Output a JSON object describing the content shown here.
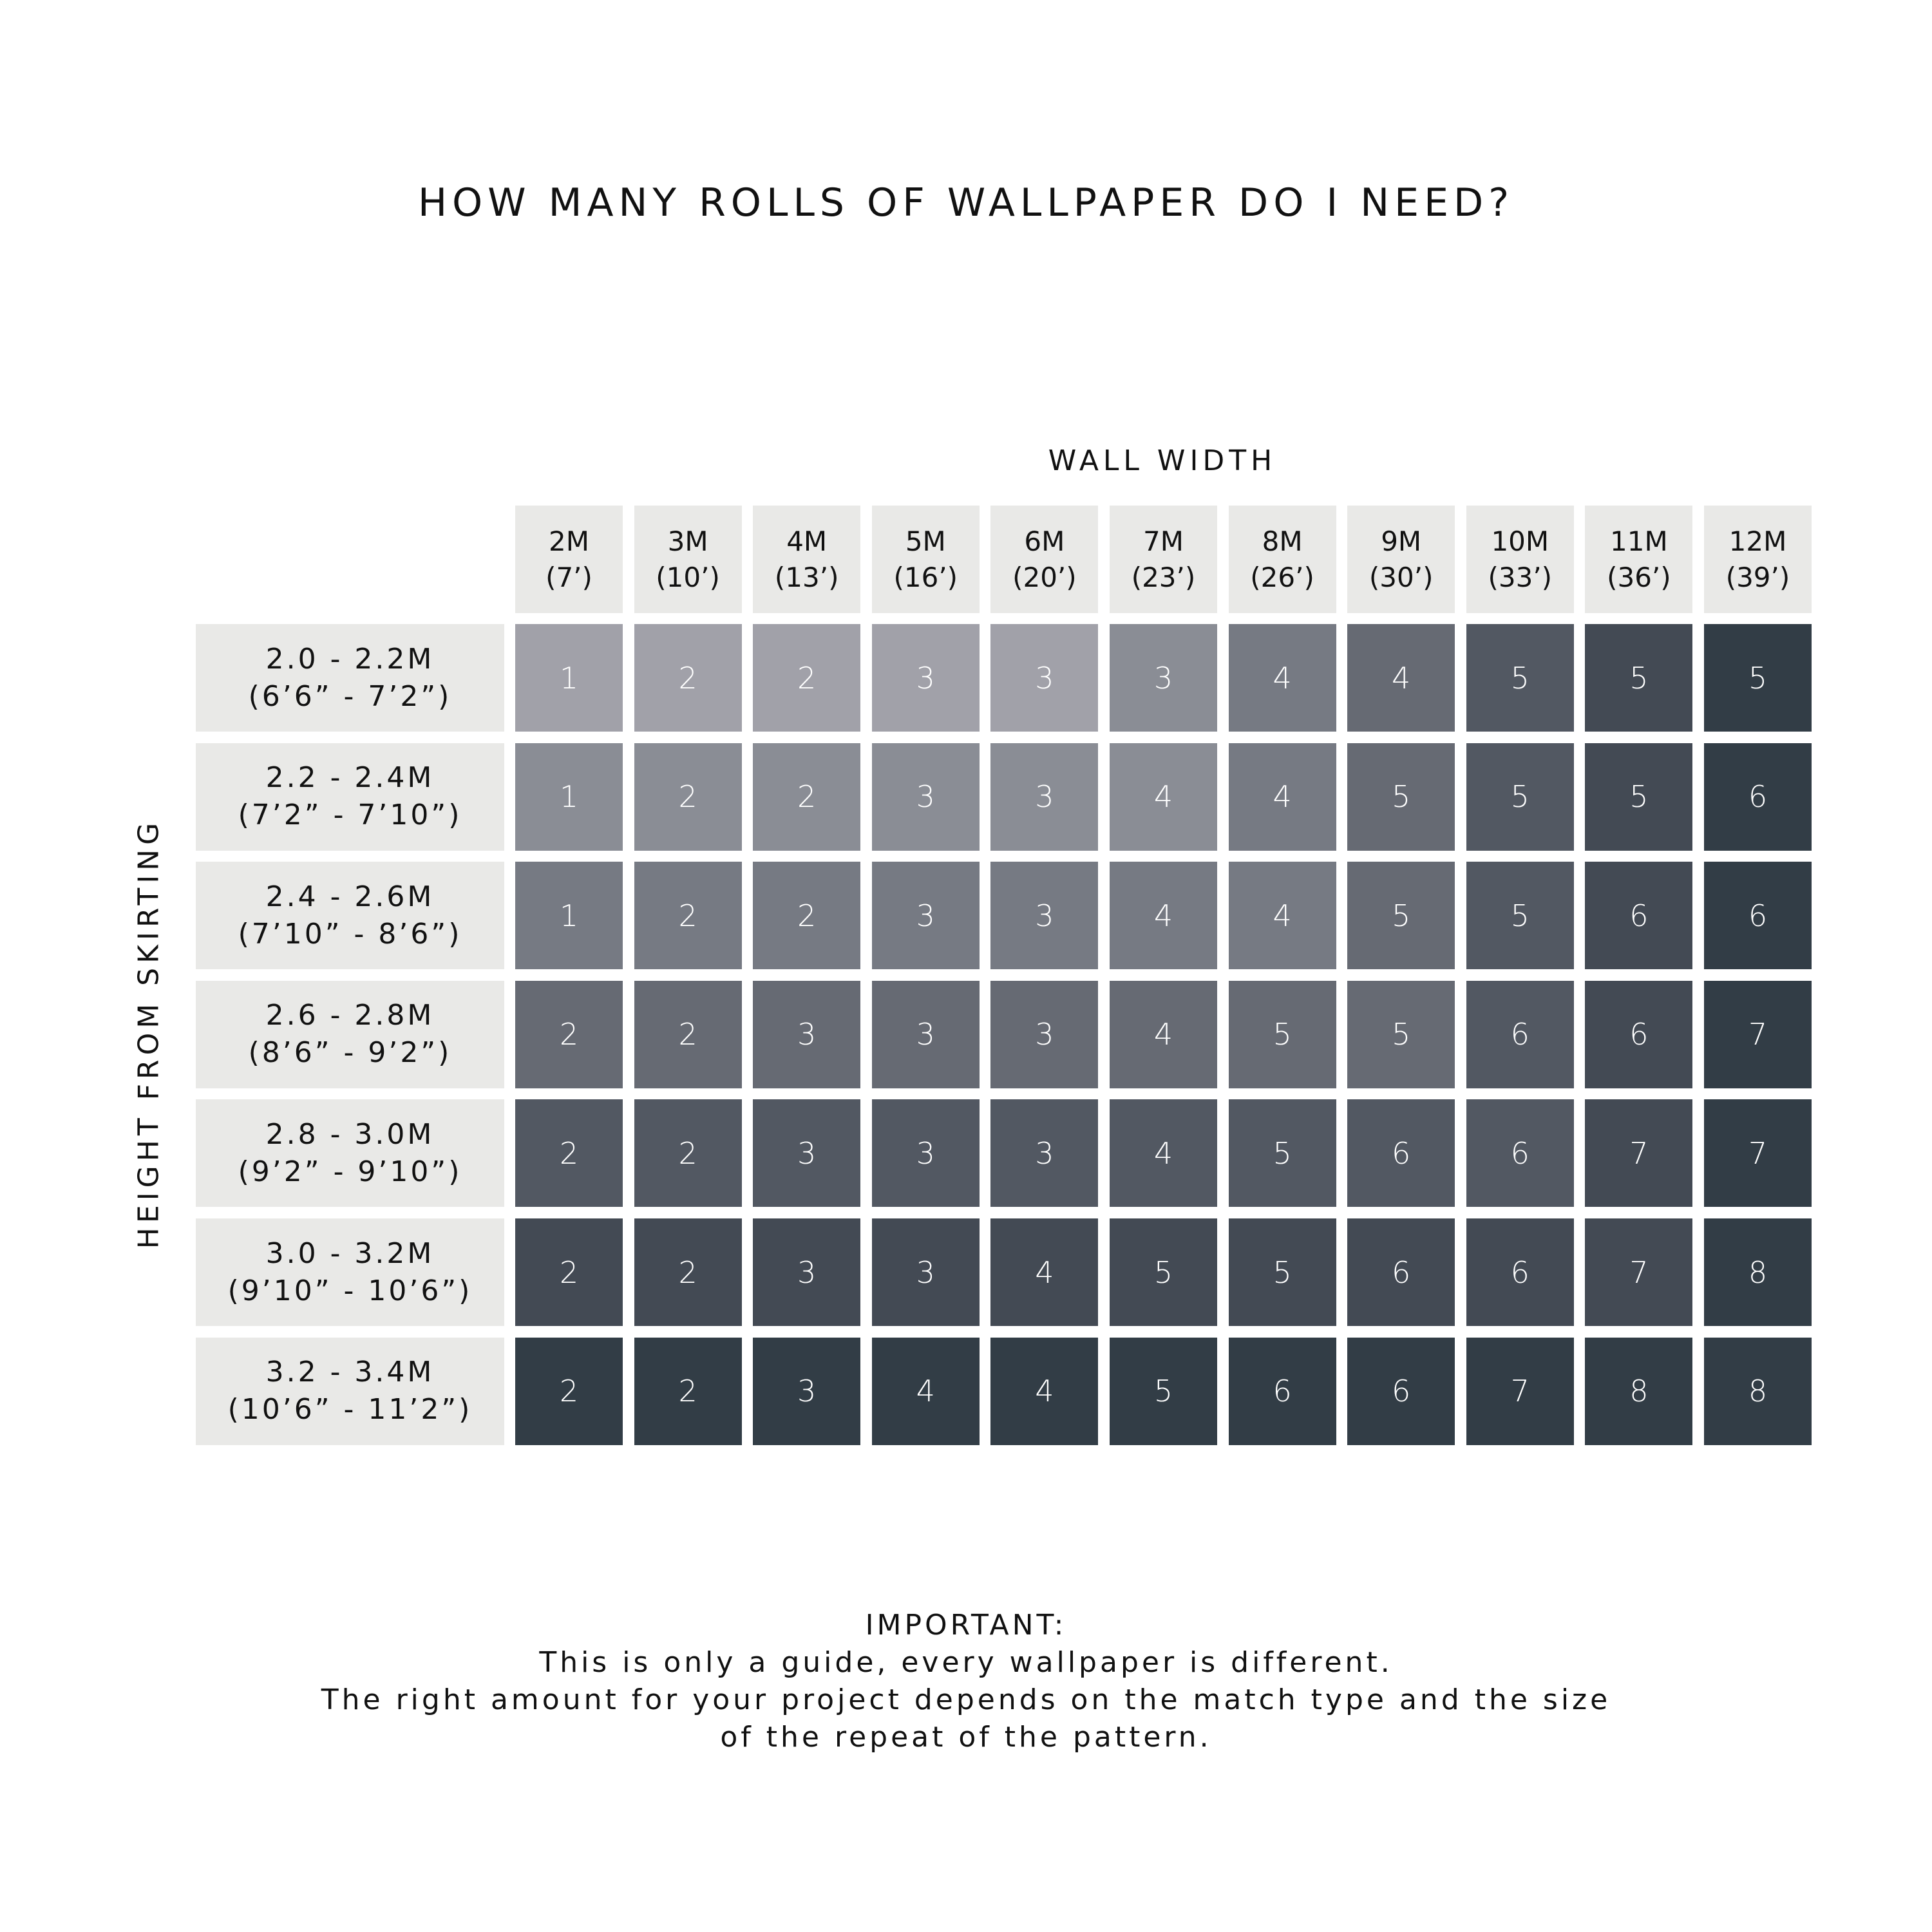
{
  "chart_data": {
    "type": "table",
    "title": "HOW MANY ROLLS OF WALLPAPER DO I NEED?",
    "xlabel": "WALL WIDTH",
    "ylabel": "HEIGHT FROM SKIRTING",
    "columns": [
      {
        "m": "2M",
        "ft": "(7’)"
      },
      {
        "m": "3M",
        "ft": "(10’)"
      },
      {
        "m": "4M",
        "ft": "(13’)"
      },
      {
        "m": "5M",
        "ft": "(16’)"
      },
      {
        "m": "6M",
        "ft": "(20’)"
      },
      {
        "m": "7M",
        "ft": "(23’)"
      },
      {
        "m": "8M",
        "ft": "(26’)"
      },
      {
        "m": "9M",
        "ft": "(30’)"
      },
      {
        "m": "10M",
        "ft": "(33’)"
      },
      {
        "m": "11M",
        "ft": "(36’)"
      },
      {
        "m": "12M",
        "ft": "(39’)"
      }
    ],
    "rows": [
      {
        "m": "2.0 - 2.2M",
        "ft": "(6’6” - 7’2”)"
      },
      {
        "m": "2.2 - 2.4M",
        "ft": "(7’2” - 7’10”)"
      },
      {
        "m": "2.4 - 2.6M",
        "ft": "(7’10” - 8’6”)"
      },
      {
        "m": "2.6 - 2.8M",
        "ft": "(8’6” - 9’2”)"
      },
      {
        "m": "2.8 - 3.0M",
        "ft": "(9’2” - 9’10”)"
      },
      {
        "m": "3.0 - 3.2M",
        "ft": "(9’10” - 10’6”)"
      },
      {
        "m": "3.2 - 3.4M",
        "ft": "(10’6” - 11’2”)"
      }
    ],
    "values": [
      [
        1,
        2,
        2,
        3,
        3,
        3,
        4,
        4,
        5,
        5,
        5
      ],
      [
        1,
        2,
        2,
        3,
        3,
        4,
        4,
        5,
        5,
        5,
        6
      ],
      [
        1,
        2,
        2,
        3,
        3,
        4,
        4,
        5,
        5,
        6,
        6
      ],
      [
        2,
        2,
        3,
        3,
        3,
        4,
        5,
        5,
        6,
        6,
        7
      ],
      [
        2,
        2,
        3,
        3,
        3,
        4,
        5,
        6,
        6,
        7,
        7
      ],
      [
        2,
        2,
        3,
        3,
        4,
        5,
        5,
        6,
        6,
        7,
        8
      ],
      [
        2,
        2,
        3,
        4,
        4,
        5,
        6,
        6,
        7,
        8,
        8
      ]
    ],
    "palette": [
      "#a1a1a9",
      "#8a8d95",
      "#767a83",
      "#666a73",
      "#525862",
      "#434a54",
      "#323d46"
    ],
    "shade_index": [
      [
        0,
        0,
        0,
        0,
        0,
        1,
        2,
        3,
        4,
        5,
        6
      ],
      [
        1,
        1,
        1,
        1,
        1,
        1,
        2,
        3,
        4,
        5,
        6
      ],
      [
        2,
        2,
        2,
        2,
        2,
        2,
        2,
        3,
        4,
        5,
        6
      ],
      [
        3,
        3,
        3,
        3,
        3,
        3,
        3,
        3,
        4,
        5,
        6
      ],
      [
        4,
        4,
        4,
        4,
        4,
        4,
        4,
        4,
        4,
        5,
        6
      ],
      [
        5,
        5,
        5,
        5,
        5,
        5,
        5,
        5,
        5,
        5,
        6
      ],
      [
        6,
        6,
        6,
        6,
        6,
        6,
        6,
        6,
        6,
        6,
        6
      ]
    ],
    "header_background": "#e9e9e7"
  },
  "footer": {
    "line1": "IMPORTANT:",
    "line2": "This is only a guide, every wallpaper is different.",
    "line3": "The right amount for your project depends on the match type and the size",
    "line4": "of the repeat of the pattern."
  }
}
